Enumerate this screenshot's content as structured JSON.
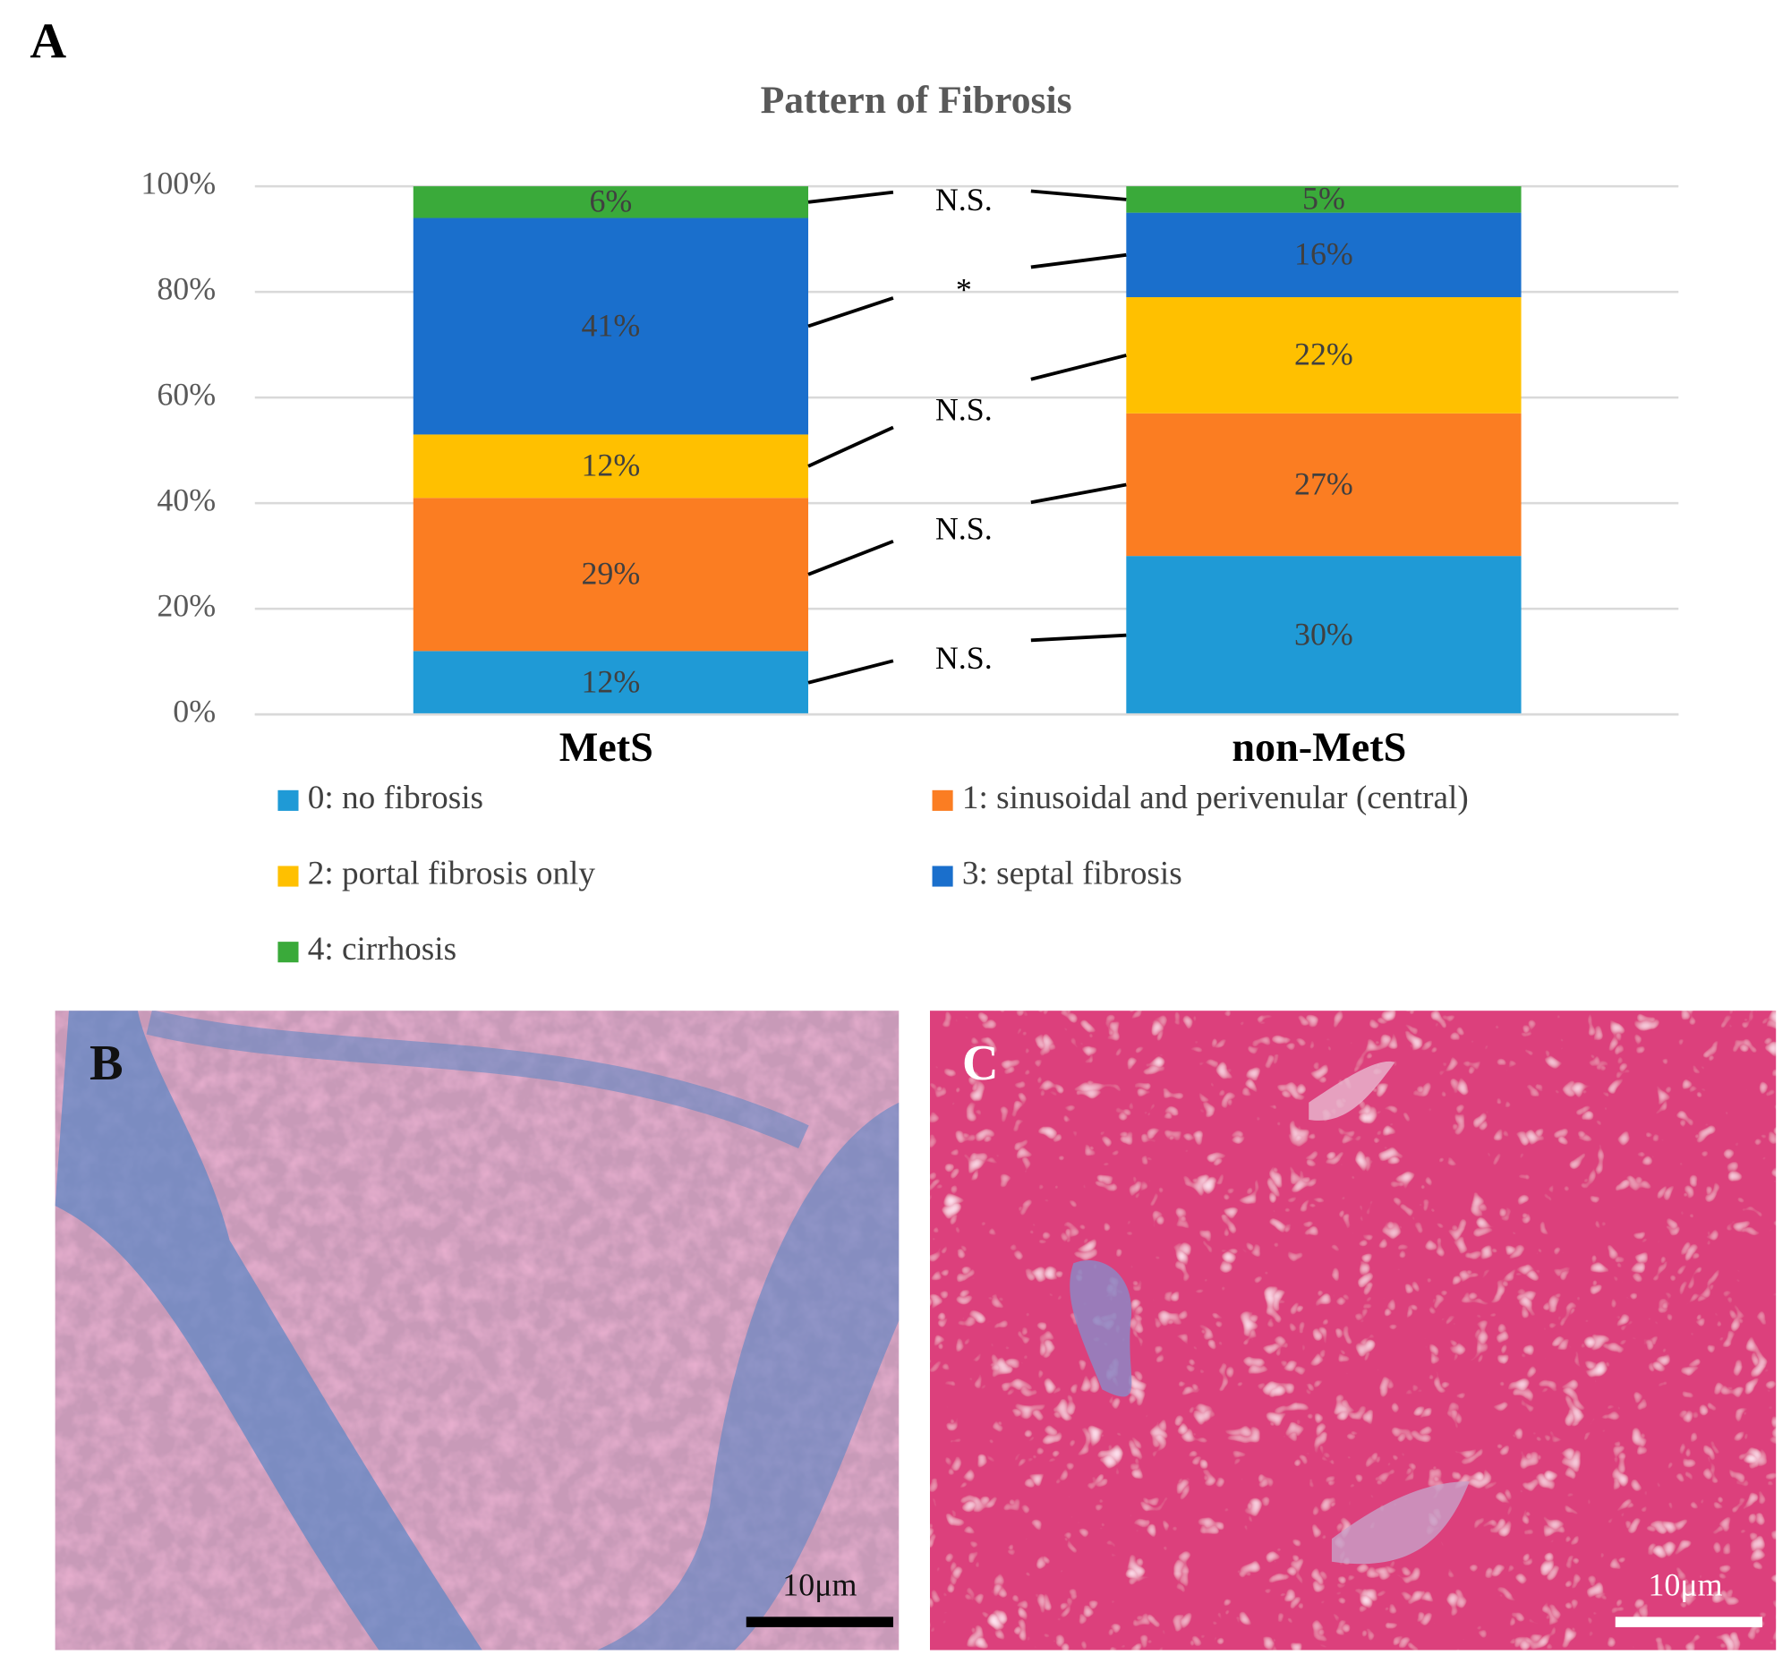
{
  "panel_label": "A",
  "chart_data": {
    "type": "stacked_bar",
    "title": "Pattern of Fibrosis",
    "categories": [
      "MetS",
      "non-MetS"
    ],
    "series": [
      {
        "name": "0: no fibrosis",
        "color": "#1f9ad6",
        "values": [
          12,
          30
        ],
        "value_labels": [
          "12%",
          "30%"
        ]
      },
      {
        "name": "1: sinusoidal and perivenular (central)",
        "color": "#fb7d22",
        "values": [
          29,
          27
        ],
        "value_labels": [
          "29%",
          "27%"
        ]
      },
      {
        "name": "2: portal fibrosis only",
        "color": "#ffc000",
        "values": [
          12,
          22
        ],
        "value_labels": [
          "12%",
          "22%"
        ]
      },
      {
        "name": "3: septal fibrosis",
        "color": "#1a6fcc",
        "values": [
          41,
          16
        ],
        "value_labels": [
          "41%",
          "16%"
        ]
      },
      {
        "name": "4: cirrhosis",
        "color": "#3aaa3a",
        "values": [
          6,
          5
        ],
        "value_labels": [
          "6%",
          "5%"
        ]
      }
    ],
    "annotations": [
      "N.S.",
      "N.S.",
      "N.S.",
      "*",
      "N.S."
    ],
    "ylim": [
      0,
      100
    ],
    "yticks": [
      {
        "value": 0,
        "label": "0%"
      },
      {
        "value": 20,
        "label": "20%"
      },
      {
        "value": 40,
        "label": "40%"
      },
      {
        "value": 60,
        "label": "60%"
      },
      {
        "value": 80,
        "label": "80%"
      },
      {
        "value": 100,
        "label": "100%"
      }
    ],
    "grid": true
  },
  "images": [
    {
      "label": "B",
      "scale_bar": "10μm"
    },
    {
      "label": "C",
      "scale_bar": "10μm"
    }
  ]
}
